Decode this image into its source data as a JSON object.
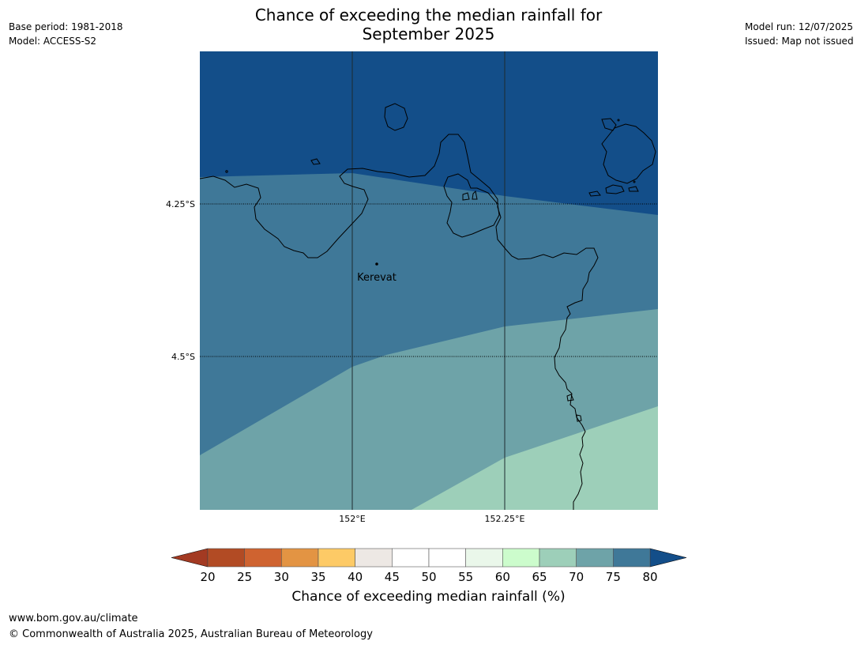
{
  "title": {
    "line1": "Chance of exceeding the median rainfall for",
    "line2": "September 2025"
  },
  "meta_left": {
    "base_period": "Base period: 1981-2018",
    "model": "Model: ACCESS-S2"
  },
  "meta_right": {
    "model_run": "Model run: 12/07/2025",
    "issued": "Issued: Map not issued"
  },
  "map": {
    "lat_labels": [
      "4.25°S",
      "4.5°S"
    ],
    "lon_labels": [
      "152°E",
      "152.25°E"
    ],
    "place": {
      "name": "Kerevat"
    },
    "zones": [
      {
        "band": "above 80",
        "color": "#134e89"
      },
      {
        "band": "75-80",
        "color": "#3f7898"
      },
      {
        "band": "70-75",
        "color": "#6ea3a8"
      },
      {
        "band": "65-70",
        "color": "#9dcfb9"
      }
    ]
  },
  "colorbar": {
    "title": "Chance of exceeding median rainfall (%)",
    "ticks": [
      "20",
      "25",
      "30",
      "35",
      "40",
      "45",
      "50",
      "55",
      "60",
      "65",
      "70",
      "75",
      "80"
    ],
    "under_color": "#a33a22",
    "over_color": "#134e89",
    "colors": [
      "#b24b24",
      "#cf6330",
      "#e39443",
      "#fdca66",
      "#ede8e4",
      "#ffffff",
      "#ffffff",
      "#eaf7ea",
      "#ccfccc",
      "#9dcfb9",
      "#6ea3a8",
      "#3f7898"
    ]
  },
  "footer": {
    "url": "www.bom.gov.au/climate",
    "copyright": "© Commonwealth of Australia 2025, Australian Bureau of Meteorology"
  }
}
